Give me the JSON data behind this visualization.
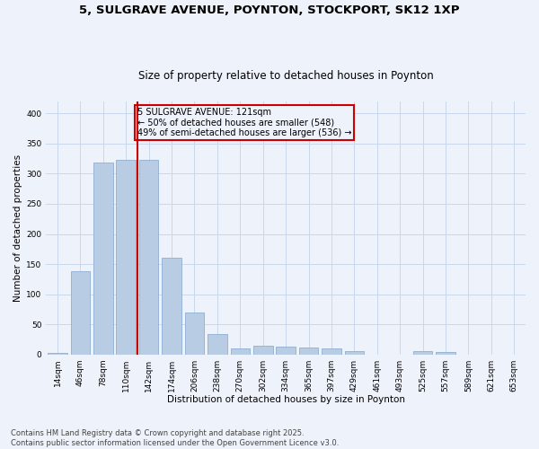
{
  "title1": "5, SULGRAVE AVENUE, POYNTON, STOCKPORT, SK12 1XP",
  "title2": "Size of property relative to detached houses in Poynton",
  "xlabel": "Distribution of detached houses by size in Poynton",
  "ylabel": "Number of detached properties",
  "categories": [
    "14sqm",
    "46sqm",
    "78sqm",
    "110sqm",
    "142sqm",
    "174sqm",
    "206sqm",
    "238sqm",
    "270sqm",
    "302sqm",
    "334sqm",
    "365sqm",
    "397sqm",
    "429sqm",
    "461sqm",
    "493sqm",
    "525sqm",
    "557sqm",
    "589sqm",
    "621sqm",
    "653sqm"
  ],
  "values": [
    3,
    138,
    318,
    323,
    323,
    160,
    70,
    33,
    10,
    15,
    13,
    12,
    10,
    5,
    0,
    0,
    5,
    4,
    0,
    0,
    0
  ],
  "bar_color": "#b8cce4",
  "bar_edge_color": "#8eadd4",
  "grid_color": "#c8d8ec",
  "background_color": "#eef2fa",
  "vline_x": 3.5,
  "vline_color": "#cc0000",
  "annotation_text": "5 SULGRAVE AVENUE: 121sqm\n← 50% of detached houses are smaller (548)\n49% of semi-detached houses are larger (536) →",
  "annotation_box_color": "#cc0000",
  "footer": "Contains HM Land Registry data © Crown copyright and database right 2025.\nContains public sector information licensed under the Open Government Licence v3.0.",
  "ylim": [
    0,
    420
  ],
  "yticks": [
    0,
    50,
    100,
    150,
    200,
    250,
    300,
    350,
    400
  ],
  "title_fontsize": 9.5,
  "subtitle_fontsize": 8.5,
  "axis_label_fontsize": 7.5,
  "tick_fontsize": 6.5,
  "footer_fontsize": 6,
  "annot_fontsize": 7
}
